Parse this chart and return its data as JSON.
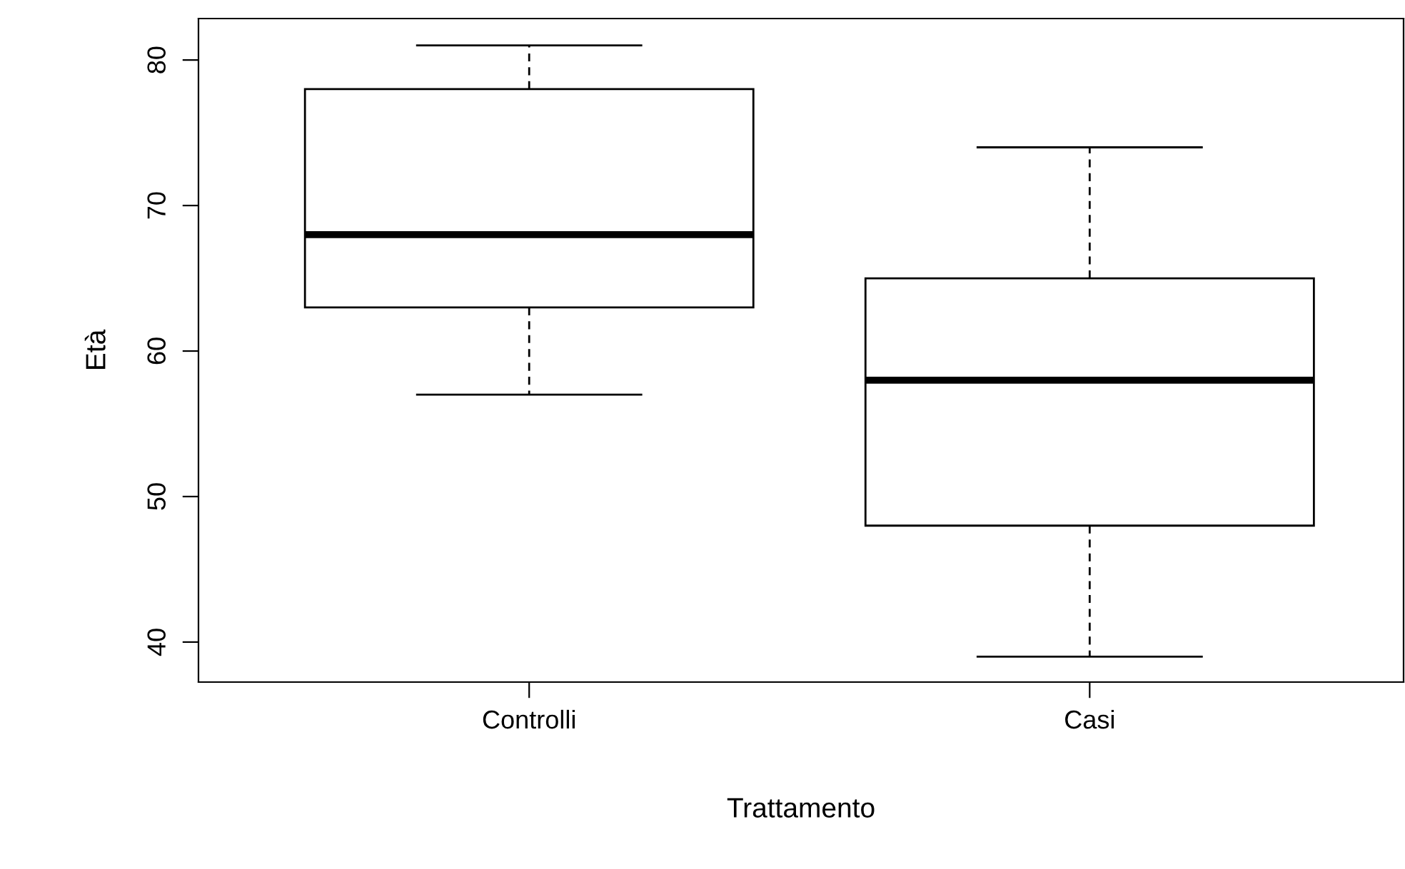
{
  "chart_data": {
    "type": "box",
    "xlabel": "Trattamento",
    "ylabel": "Età",
    "categories": [
      "Controlli",
      "Casi"
    ],
    "boxes": [
      {
        "low": 57,
        "q1": 63,
        "median": 68,
        "q3": 78,
        "high": 81
      },
      {
        "low": 39,
        "q1": 48,
        "median": 58,
        "q3": 65,
        "high": 74
      }
    ],
    "ylim": [
      37.25,
      82.85
    ],
    "yticks": [
      40,
      50,
      60,
      70,
      80
    ],
    "grid": false,
    "legend": false
  }
}
